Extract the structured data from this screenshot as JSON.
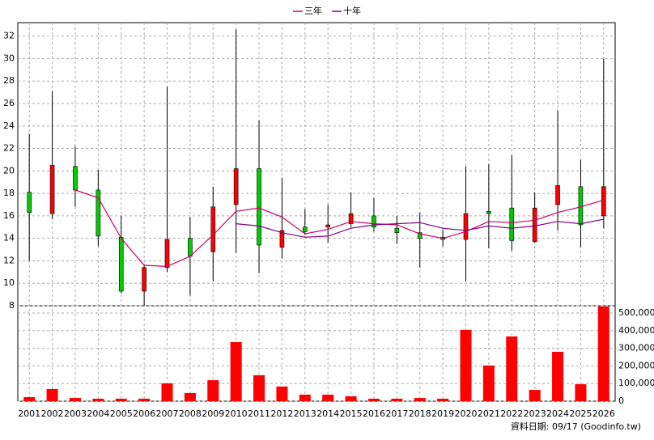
{
  "chart_data": {
    "type": "candlestick",
    "categories": [
      "2001",
      "2002",
      "2003",
      "2004",
      "2005",
      "2006",
      "2007",
      "2008",
      "2009",
      "2010",
      "2011",
      "2012",
      "2013",
      "2014",
      "2015",
      "2016",
      "2017",
      "2018",
      "2019",
      "2020",
      "2021",
      "2022",
      "2023",
      "2024",
      "2025",
      "2026"
    ],
    "candles": {
      "open": [
        18.1,
        16.2,
        20.4,
        18.3,
        14.1,
        9.3,
        11.4,
        14.0,
        12.8,
        17.0,
        20.2,
        13.2,
        15.0,
        15.0,
        15.3,
        16.0,
        14.9,
        14.5,
        14.1,
        13.9,
        16.4,
        16.7,
        13.7,
        17.0,
        18.6,
        16.0
      ],
      "high": [
        23.3,
        27.1,
        22.2,
        20.1,
        16.0,
        11.7,
        27.5,
        15.9,
        18.6,
        32.6,
        24.5,
        19.4,
        16.6,
        17.0,
        18.1,
        17.6,
        16.0,
        16.3,
        14.8,
        20.4,
        20.6,
        21.4,
        18.1,
        25.4,
        21.0,
        30.0
      ],
      "low": [
        12.0,
        15.7,
        16.8,
        13.3,
        9.1,
        8.0,
        11.0,
        8.9,
        10.2,
        12.7,
        10.9,
        12.2,
        14.3,
        13.6,
        15.0,
        14.6,
        13.5,
        11.4,
        13.3,
        10.2,
        13.1,
        12.9,
        13.6,
        14.7,
        13.2,
        14.9
      ],
      "close": [
        16.3,
        20.5,
        18.3,
        14.2,
        9.3,
        11.4,
        13.9,
        12.4,
        16.8,
        20.2,
        13.4,
        14.7,
        14.6,
        15.2,
        16.2,
        15.0,
        14.5,
        14.0,
        13.9,
        16.2,
        16.2,
        13.8,
        16.7,
        18.7,
        15.2,
        18.6
      ]
    },
    "up_color": "#ff0000",
    "down_color": "#00cc00",
    "series": [
      {
        "name": "三年",
        "color": "#cc0066",
        "values": [
          null,
          null,
          18.3,
          17.6,
          14.0,
          11.6,
          11.5,
          12.4,
          14.3,
          16.4,
          16.7,
          15.9,
          14.4,
          14.8,
          15.5,
          15.3,
          15.2,
          14.4,
          14.0,
          14.6,
          15.5,
          15.4,
          15.6,
          16.3,
          16.8,
          17.4
        ]
      },
      {
        "name": "十年",
        "color": "#800080",
        "values": [
          null,
          null,
          null,
          null,
          null,
          null,
          null,
          null,
          null,
          15.3,
          15.1,
          14.5,
          14.1,
          14.2,
          14.9,
          15.2,
          15.3,
          15.4,
          14.9,
          14.7,
          15.1,
          14.9,
          15.1,
          15.5,
          15.3,
          15.7
        ]
      }
    ],
    "volume": {
      "color": "#ff0000",
      "axis": "y2",
      "values": [
        23000,
        69000,
        18000,
        14000,
        14000,
        14000,
        101000,
        46000,
        119000,
        335000,
        147000,
        83000,
        37000,
        37000,
        28000,
        14000,
        14000,
        18000,
        14000,
        404000,
        202000,
        367000,
        64000,
        280000,
        96000,
        537000
      ]
    },
    "ylim": [
      8,
      33.2
    ],
    "yticks": [
      8,
      10,
      12,
      14,
      16,
      18,
      20,
      22,
      24,
      26,
      28,
      30,
      32
    ],
    "y2lim": [
      0,
      541000
    ],
    "y2ticks": [
      {
        "value": 0,
        "label": "0"
      },
      {
        "value": 100000,
        "label": "100,000"
      },
      {
        "value": 200000,
        "label": "200,000"
      },
      {
        "value": 300000,
        "label": "300,000"
      },
      {
        "value": 400000,
        "label": "400,000"
      },
      {
        "value": 500000,
        "label": "500,000"
      }
    ],
    "grid": true,
    "footer": "資料日期: 09/17  (Goodinfo.tw)"
  }
}
